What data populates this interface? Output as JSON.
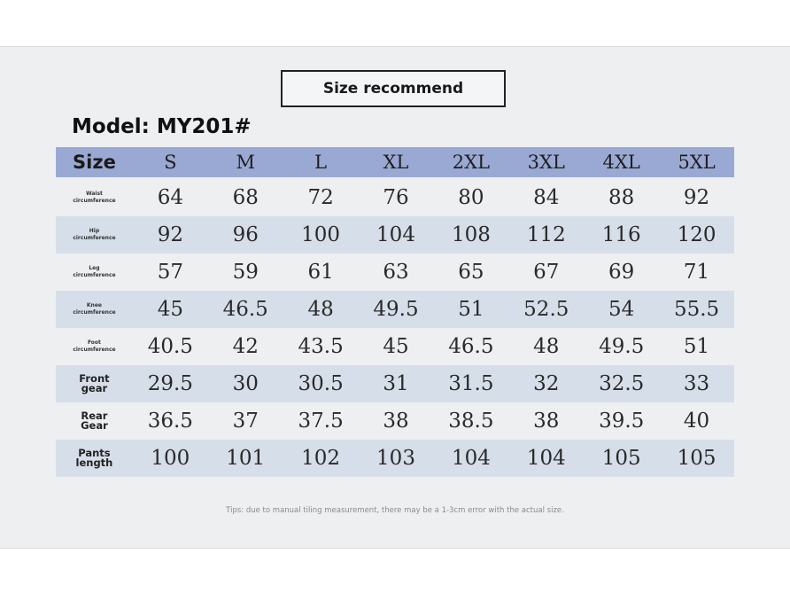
{
  "title": "Size recommend",
  "model": {
    "label": "Model:",
    "value": "MY201#"
  },
  "table": {
    "header": {
      "label": "Size",
      "sizes": [
        "S",
        "M",
        "L",
        "XL",
        "2XL",
        "3XL",
        "4XL",
        "5XL"
      ]
    },
    "rows": [
      {
        "label_lines": [
          "Waist",
          "circumference"
        ],
        "values": [
          "64",
          "68",
          "72",
          "76",
          "80",
          "84",
          "88",
          "92"
        ]
      },
      {
        "label_lines": [
          "Hip",
          "circumference"
        ],
        "values": [
          "92",
          "96",
          "100",
          "104",
          "108",
          "112",
          "116",
          "120"
        ]
      },
      {
        "label_lines": [
          "Leg",
          "circumference"
        ],
        "values": [
          "57",
          "59",
          "61",
          "63",
          "65",
          "67",
          "69",
          "71"
        ]
      },
      {
        "label_lines": [
          "Knee",
          "circumference"
        ],
        "values": [
          "45",
          "46.5",
          "48",
          "49.5",
          "51",
          "52.5",
          "54",
          "55.5"
        ]
      },
      {
        "label_lines": [
          "Foot",
          "circumference"
        ],
        "values": [
          "40.5",
          "42",
          "43.5",
          "45",
          "46.5",
          "48",
          "49.5",
          "51"
        ]
      },
      {
        "label_lines": [
          "Front",
          "gear"
        ],
        "values": [
          "29.5",
          "30",
          "30.5",
          "31",
          "31.5",
          "32",
          "32.5",
          "33"
        ]
      },
      {
        "label_lines": [
          "Rear",
          "Gear"
        ],
        "values": [
          "36.5",
          "37",
          "37.5",
          "38",
          "38.5",
          "38",
          "39.5",
          "40"
        ]
      },
      {
        "label_lines": [
          "Pants",
          "length"
        ],
        "values": [
          "100",
          "101",
          "102",
          "103",
          "104",
          "104",
          "105",
          "105"
        ]
      }
    ]
  },
  "tips": "Tips: due to manual tiling measurement, there may be a 1-3cm error with the actual size."
}
